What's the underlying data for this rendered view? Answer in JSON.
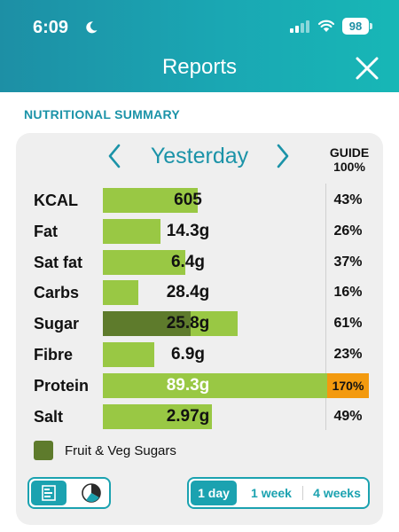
{
  "status_bar": {
    "time": "6:09",
    "battery": "98"
  },
  "header": {
    "title": "Reports"
  },
  "section_title": "NUTRITIONAL SUMMARY",
  "date_nav": {
    "label": "Yesterday"
  },
  "guide": {
    "line1": "GUIDE",
    "line2": "100%"
  },
  "rows": [
    {
      "label": "KCAL",
      "value": "605",
      "percent": "43%",
      "fill": 0.358,
      "dark_fill": 0
    },
    {
      "label": "Fat",
      "value": "14.3g",
      "percent": "26%",
      "fill": 0.217,
      "dark_fill": 0
    },
    {
      "label": "Sat fat",
      "value": "6.4g",
      "percent": "37%",
      "fill": 0.31,
      "dark_fill": 0
    },
    {
      "label": "Carbs",
      "value": "28.4g",
      "percent": "16%",
      "fill": 0.133,
      "dark_fill": 0
    },
    {
      "label": "Sugar",
      "value": "25.8g",
      "percent": "61%",
      "fill": 0.507,
      "dark_fill": 0.33
    },
    {
      "label": "Fibre",
      "value": "6.9g",
      "percent": "23%",
      "fill": 0.193,
      "dark_fill": 0
    },
    {
      "label": "Protein",
      "value": "89.3g",
      "percent": "170%",
      "fill": 1.0,
      "dark_fill": 0
    },
    {
      "label": "Salt",
      "value": "2.97g",
      "percent": "49%",
      "fill": 0.41,
      "dark_fill": 0
    }
  ],
  "legend": {
    "label": "Fruit & Veg Sugars",
    "color": "#5e7b2c"
  },
  "colors": {
    "accent": "#1ba2b0",
    "bar": "#99c844",
    "over_guide": "#f39a0f"
  },
  "range_options": [
    {
      "label": "1 day",
      "active": true
    },
    {
      "label": "1 week",
      "active": false
    },
    {
      "label": "4 weeks",
      "active": false
    }
  ]
}
